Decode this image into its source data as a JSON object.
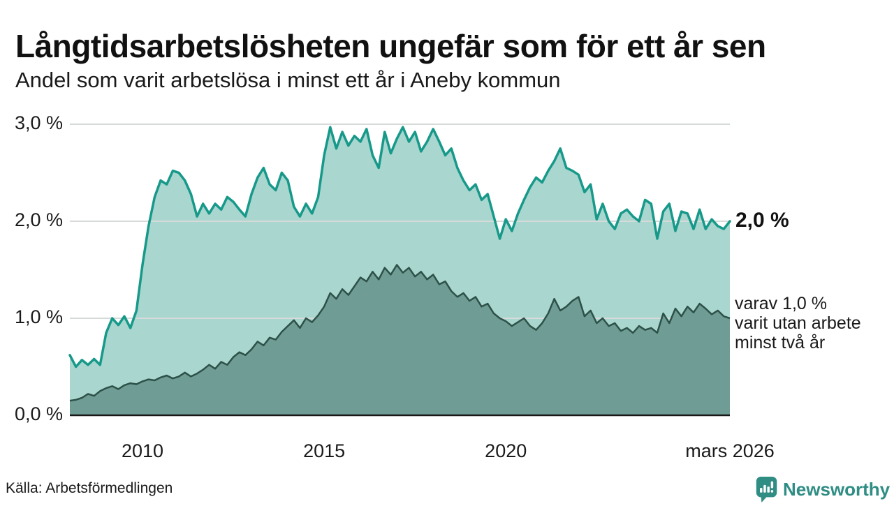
{
  "header": {
    "title": "Långtidsarbetslösheten ungefär som för ett år sen",
    "subtitle": "Andel som varit arbetslösa i minst ett år i Aneby kommun"
  },
  "annotations": {
    "series1_end_label": "2,0 %",
    "series2_label_lines": [
      "varav 1,0 %",
      "varit utan arbete",
      "minst två år"
    ]
  },
  "footer": {
    "source": "Källa: Arbetsförmedlingen",
    "brand": "Newsworthy"
  },
  "colors": {
    "series1_line": "#17998a",
    "series1_fill": "#a9d6cf",
    "series2_line": "#2d5148",
    "series2_fill": "#6f9d96",
    "gridline": "#d6dad9",
    "axis": "#1a1a1a",
    "brand_teal": "#2f8d84",
    "text": "#1a1a1a"
  },
  "chart_data": {
    "type": "area",
    "title": "Långtidsarbetslösheten ungefär som för ett år sen",
    "subtitle": "Andel som varit arbetslösa i minst ett år i Aneby kommun",
    "unit": "%",
    "grid": true,
    "x_domain": [
      2008.0,
      2026.1667
    ],
    "x_step_years": 0.166667,
    "ylim": [
      0,
      3.0
    ],
    "y_ticks": [
      {
        "label": "3,0 %",
        "value": 3.0
      },
      {
        "label": "2,0 %",
        "value": 2.0
      },
      {
        "label": "1,0 %",
        "value": 1.0
      },
      {
        "label": "0,0 %",
        "value": 0.0
      }
    ],
    "x_ticks": [
      {
        "label": "2010",
        "value": 2010
      },
      {
        "label": "2015",
        "value": 2015
      },
      {
        "label": "2020",
        "value": 2020
      },
      {
        "label": "mars 2026",
        "value": 2026.1667
      }
    ],
    "series": [
      {
        "name": "Andel arbetslösa minst ett år",
        "end_label": "2,0 %",
        "end_value": 2.0,
        "values": [
          0.62,
          0.5,
          0.57,
          0.52,
          0.58,
          0.52,
          0.85,
          1.0,
          0.93,
          1.02,
          0.9,
          1.08,
          1.55,
          1.95,
          2.25,
          2.42,
          2.38,
          2.52,
          2.5,
          2.42,
          2.28,
          2.05,
          2.18,
          2.08,
          2.18,
          2.12,
          2.25,
          2.2,
          2.12,
          2.05,
          2.28,
          2.45,
          2.55,
          2.38,
          2.32,
          2.5,
          2.42,
          2.15,
          2.05,
          2.18,
          2.08,
          2.25,
          2.68,
          2.97,
          2.75,
          2.92,
          2.78,
          2.88,
          2.82,
          2.95,
          2.68,
          2.55,
          2.92,
          2.7,
          2.85,
          2.97,
          2.82,
          2.92,
          2.72,
          2.82,
          2.95,
          2.82,
          2.68,
          2.75,
          2.55,
          2.42,
          2.32,
          2.38,
          2.22,
          2.28,
          2.05,
          1.82,
          2.02,
          1.9,
          2.08,
          2.22,
          2.35,
          2.45,
          2.4,
          2.52,
          2.62,
          2.75,
          2.55,
          2.52,
          2.48,
          2.3,
          2.38,
          2.02,
          2.18,
          2.0,
          1.92,
          2.08,
          2.12,
          2.05,
          2.0,
          2.22,
          2.18,
          1.82,
          2.1,
          2.18,
          1.9,
          2.1,
          2.08,
          1.92,
          2.12,
          1.92,
          2.02,
          1.95,
          1.92,
          2.0
        ]
      },
      {
        "name": "varav arbetslösa minst två år",
        "end_label": "varav 1,0 % varit utan arbete minst två år",
        "end_value": 1.0,
        "values": [
          0.15,
          0.16,
          0.18,
          0.22,
          0.2,
          0.25,
          0.28,
          0.3,
          0.27,
          0.31,
          0.33,
          0.32,
          0.35,
          0.37,
          0.36,
          0.39,
          0.41,
          0.38,
          0.4,
          0.44,
          0.4,
          0.43,
          0.47,
          0.52,
          0.48,
          0.55,
          0.52,
          0.6,
          0.65,
          0.62,
          0.68,
          0.76,
          0.72,
          0.8,
          0.78,
          0.86,
          0.92,
          0.98,
          0.9,
          1.0,
          0.96,
          1.03,
          1.12,
          1.26,
          1.2,
          1.3,
          1.24,
          1.33,
          1.42,
          1.38,
          1.48,
          1.4,
          1.52,
          1.45,
          1.55,
          1.47,
          1.52,
          1.43,
          1.48,
          1.4,
          1.45,
          1.35,
          1.38,
          1.28,
          1.22,
          1.26,
          1.18,
          1.22,
          1.12,
          1.15,
          1.05,
          1.0,
          0.97,
          0.92,
          0.96,
          1.0,
          0.92,
          0.88,
          0.95,
          1.05,
          1.2,
          1.08,
          1.12,
          1.18,
          1.22,
          1.02,
          1.08,
          0.95,
          1.0,
          0.92,
          0.95,
          0.87,
          0.9,
          0.85,
          0.92,
          0.88,
          0.9,
          0.85,
          1.05,
          0.95,
          1.1,
          1.02,
          1.12,
          1.06,
          1.15,
          1.1,
          1.04,
          1.08,
          1.02,
          1.0
        ]
      }
    ]
  }
}
